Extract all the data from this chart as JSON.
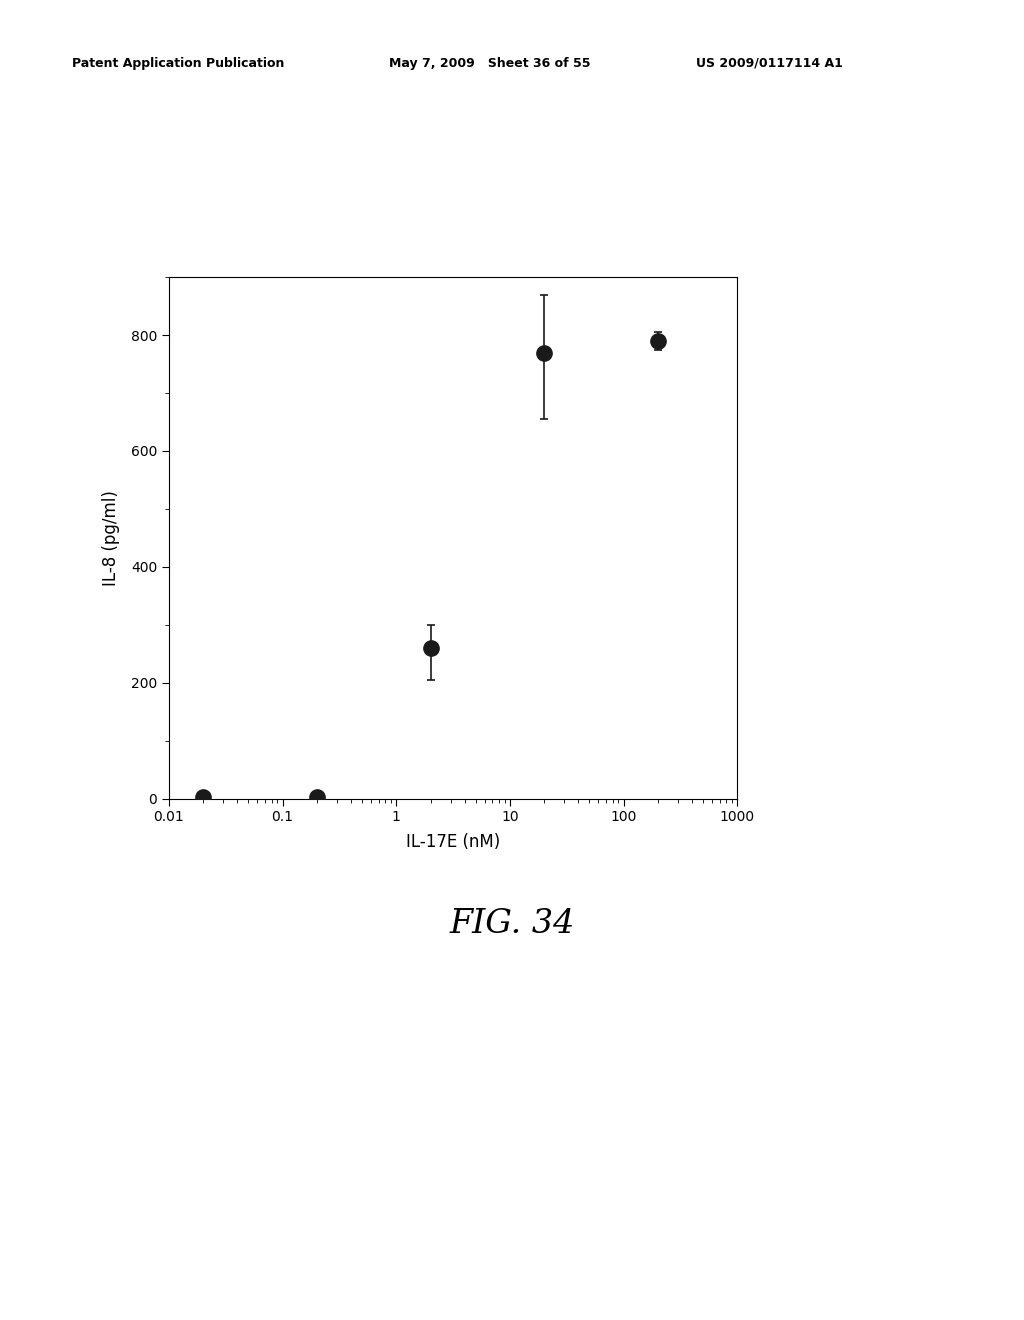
{
  "x_values": [
    0.02,
    0.2,
    2.0,
    20.0,
    200.0
  ],
  "y_values": [
    2,
    2,
    260,
    770,
    790
  ],
  "y_err_lower": [
    2,
    2,
    55,
    115,
    15
  ],
  "y_err_upper": [
    2,
    2,
    40,
    100,
    15
  ],
  "xlabel": "IL-17E (nM)",
  "ylabel": "IL-8 (pg/ml)",
  "figure_label": "FIG. 34",
  "header_left": "Patent Application Publication",
  "header_mid": "May 7, 2009   Sheet 36 of 55",
  "header_right": "US 2009/0117114 A1",
  "xlim": [
    0.01,
    1000
  ],
  "ylim": [
    0,
    900
  ],
  "yticks": [
    0,
    200,
    400,
    600,
    800
  ],
  "xticks": [
    0.01,
    0.1,
    1,
    10,
    100,
    1000
  ],
  "xtick_labels": [
    "0.01",
    "0.1",
    "1",
    "10",
    "100",
    "1000"
  ],
  "marker_color": "#1a1a1a",
  "marker_size": 11,
  "background_color": "#ffffff",
  "font_size_label": 12,
  "font_size_tick": 10,
  "font_size_header": 9,
  "font_size_fig_label": 24
}
